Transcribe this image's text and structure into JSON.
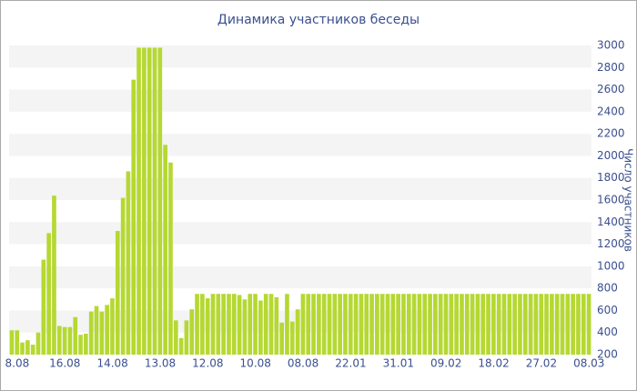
{
  "chart_data": {
    "type": "bar",
    "title": "Динамика участников беседы",
    "y_label": "Число участников",
    "color": "#b5d832",
    "grid": true,
    "ylim": [
      200,
      3000
    ],
    "yticks": [
      200,
      400,
      600,
      800,
      1000,
      1200,
      1400,
      1600,
      1800,
      2000,
      2200,
      2400,
      2600,
      2800,
      3000
    ],
    "categories": [
      "8.08",
      null,
      null,
      null,
      null,
      null,
      null,
      null,
      null,
      "16.08",
      null,
      null,
      null,
      null,
      null,
      null,
      null,
      null,
      "14.08",
      null,
      null,
      null,
      null,
      null,
      null,
      null,
      null,
      "13.08",
      null,
      null,
      null,
      null,
      null,
      null,
      null,
      null,
      "12.08",
      null,
      null,
      null,
      null,
      null,
      null,
      null,
      null,
      "10.08",
      null,
      null,
      null,
      null,
      null,
      null,
      null,
      null,
      "08.08",
      null,
      null,
      null,
      null,
      null,
      null,
      null,
      null,
      "22.01",
      null,
      null,
      null,
      null,
      null,
      null,
      null,
      null,
      "31.01",
      null,
      null,
      null,
      null,
      null,
      null,
      null,
      null,
      "09.02",
      null,
      null,
      null,
      null,
      null,
      null,
      null,
      null,
      "18.02",
      null,
      null,
      null,
      null,
      null,
      null,
      null,
      null,
      "27.02",
      null,
      null,
      null,
      null,
      null,
      null,
      null,
      null,
      "08.03",
      null
    ],
    "values": [
      420,
      420,
      310,
      330,
      290,
      400,
      1060,
      1300,
      1640,
      460,
      450,
      450,
      540,
      380,
      390,
      590,
      640,
      590,
      650,
      710,
      1320,
      1620,
      1860,
      2690,
      2980,
      2980,
      2980,
      2980,
      2980,
      2100,
      1940,
      510,
      350,
      510,
      610,
      750,
      750,
      710,
      750,
      750,
      750,
      750,
      750,
      740,
      700,
      750,
      750,
      690,
      750,
      750,
      720,
      490,
      750,
      500,
      610,
      750,
      750,
      750,
      750,
      750,
      750,
      750,
      750,
      750,
      750,
      750,
      750,
      750,
      750,
      750,
      750,
      750,
      750,
      750,
      750,
      750,
      750,
      750,
      750,
      750,
      750,
      750,
      750,
      750,
      750,
      750,
      750,
      750,
      750,
      750,
      750,
      750,
      750,
      750,
      750,
      750,
      750,
      750,
      750,
      750,
      750,
      750,
      750,
      750,
      750,
      750,
      750,
      750,
      750,
      750
    ]
  }
}
